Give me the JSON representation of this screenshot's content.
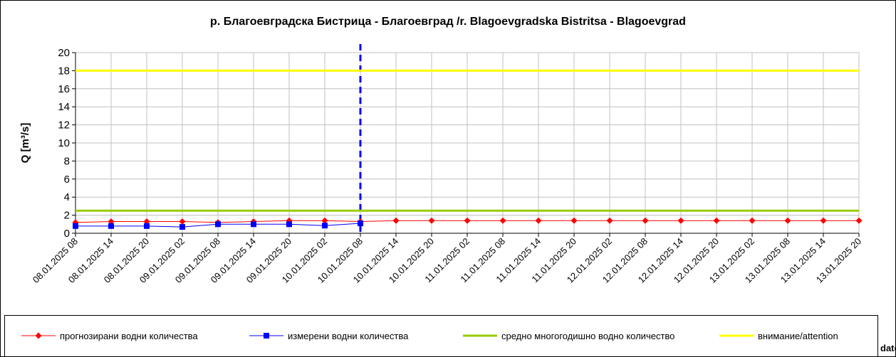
{
  "chart_data": {
    "type": "line",
    "title": "р. Благоевградска Бистрица - Благоевград /r. Blagoevgradska Bistritsa - Blagoevgrad",
    "y_label": "Q [m³/s]",
    "x_label": "date",
    "categories": [
      "08.01.2025 08",
      "08.01.2025 14",
      "08.01.2025 20",
      "09.01.2025 02",
      "09.01.2025 08",
      "09.01.2025 14",
      "09.01.2025 20",
      "10.01.2025 02",
      "10.01.2025 08",
      "10.01.2025 14",
      "10.01.2025 20",
      "11.01.2025 02",
      "11.01.2025 08",
      "11.01.2025 14",
      "11.01.2025 20",
      "12.01.2025 02",
      "12.01.2025 08",
      "12.01.2025 14",
      "12.01.2025 20",
      "13.01.2025 02",
      "13.01.2025 08",
      "13.01.2025 14",
      "13.01.2025 20"
    ],
    "series": [
      {
        "name": "прогнозирани водни количества",
        "color": "#ff0000",
        "marker": "diamond",
        "values": [
          1.2,
          1.3,
          1.3,
          1.3,
          1.2,
          1.3,
          1.4,
          1.4,
          1.3,
          1.4,
          1.4,
          1.4,
          1.4,
          1.4,
          1.4,
          1.4,
          1.4,
          1.4,
          1.4,
          1.4,
          1.4,
          1.4,
          1.4
        ]
      },
      {
        "name": "измерени водни количества",
        "color": "#0000ff",
        "marker": "square",
        "values": [
          0.8,
          0.8,
          0.8,
          0.7,
          1.0,
          1.0,
          1.0,
          0.85,
          1.1,
          null,
          null,
          null,
          null,
          null,
          null,
          null,
          null,
          null,
          null,
          null,
          null,
          null,
          null
        ]
      },
      {
        "name": "средно многогодишно водно количество",
        "color": "#99cc00",
        "marker": "none",
        "values": [
          2.5,
          2.5,
          2.5,
          2.5,
          2.5,
          2.5,
          2.5,
          2.5,
          2.5,
          2.5,
          2.5,
          2.5,
          2.5,
          2.5,
          2.5,
          2.5,
          2.5,
          2.5,
          2.5,
          2.5,
          2.5,
          2.5,
          2.5
        ]
      },
      {
        "name": "внимание/attention",
        "color": "#ffff00",
        "marker": "none",
        "values": [
          18,
          18,
          18,
          18,
          18,
          18,
          18,
          18,
          18,
          18,
          18,
          18,
          18,
          18,
          18,
          18,
          18,
          18,
          18,
          18,
          18,
          18,
          18
        ]
      }
    ],
    "now_marker": {
      "category_index": 8,
      "color": "#0000ff"
    },
    "ylim": [
      0,
      20
    ],
    "yticks": [
      0,
      2,
      4,
      6,
      8,
      10,
      12,
      14,
      16,
      18,
      20
    ],
    "grid": true,
    "legend": "bottom"
  }
}
